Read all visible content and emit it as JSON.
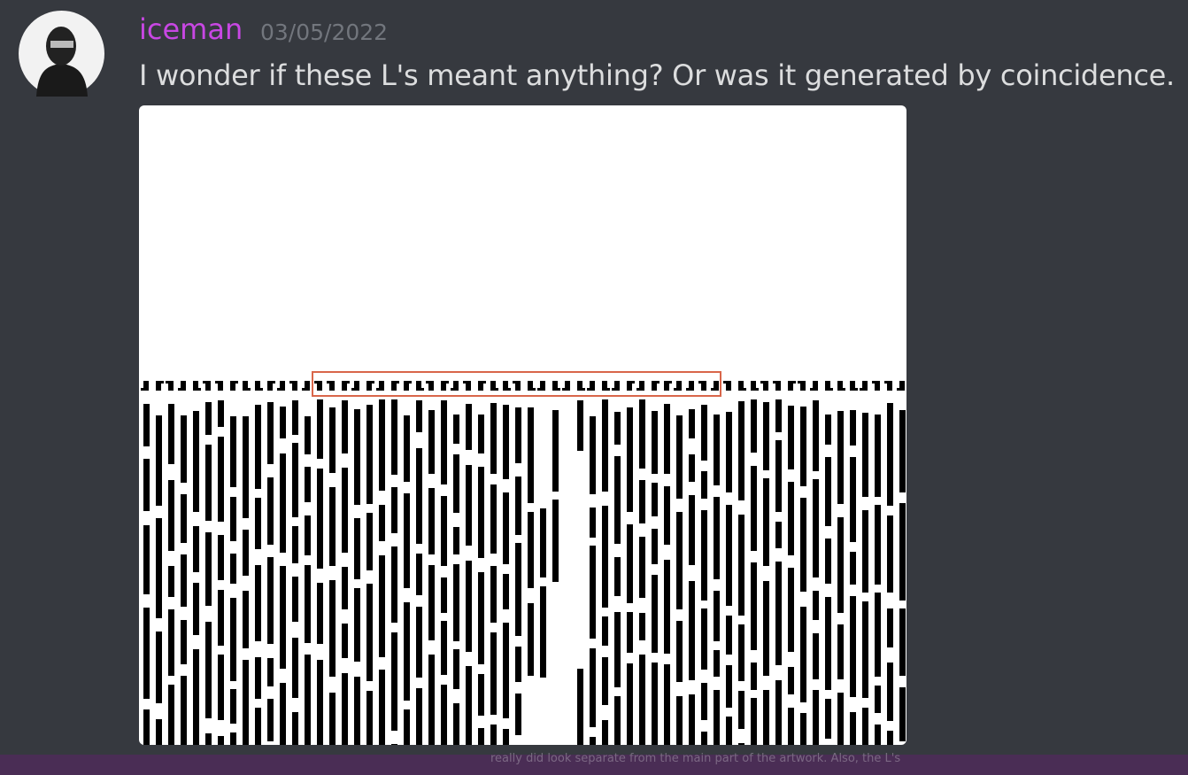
{
  "message": {
    "username": "iceman",
    "date": "03/05/2022",
    "text": "I wonder if these L's meant anything? Or was it generated by coincidence."
  },
  "background_snippet": {
    "text": "really did look separate from the main part of the artwork. Also, the L's"
  }
}
